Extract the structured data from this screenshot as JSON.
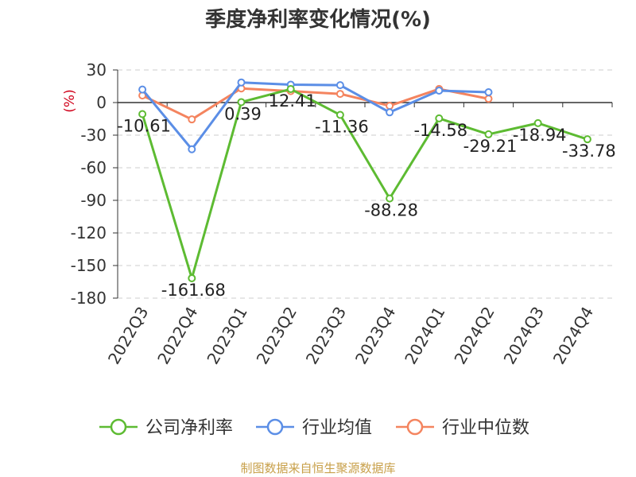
{
  "title": "季度净利率变化情况(%)",
  "source": "制图数据来自恒生聚源数据库",
  "chart_data": {
    "type": "line",
    "title": "季度净利率变化情况(%)",
    "ylabel": "(%)",
    "xlabel": "",
    "ylim": [
      -180,
      30
    ],
    "yticks": [
      30,
      0,
      -30,
      -60,
      -90,
      -120,
      -150,
      -180
    ],
    "grid": true,
    "legend_position": "bottom",
    "categories": [
      "2022Q3",
      "2022Q4",
      "2023Q1",
      "2023Q2",
      "2023Q3",
      "2023Q4",
      "2024Q1",
      "2024Q2",
      "2024Q3",
      "2024Q4"
    ],
    "series": [
      {
        "name": "公司净利率",
        "color": "#5dbb32",
        "values": [
          -10.61,
          -161.68,
          0.39,
          12.41,
          -11.36,
          -88.28,
          -14.58,
          -29.21,
          -18.94,
          -33.78
        ],
        "labels": [
          "-10.61",
          "-161.68",
          "0.39",
          "12.41",
          "-11.36",
          "-88.28",
          "-14.58",
          "-29.21",
          "-18.94",
          "-33.78"
        ]
      },
      {
        "name": "行业均值",
        "color": "#5b8ee6",
        "values": [
          12,
          -43,
          18.5,
          16.5,
          16,
          -9,
          11,
          9.5,
          null,
          null
        ]
      },
      {
        "name": "行业中位数",
        "color": "#f4845f",
        "values": [
          6.5,
          -15.5,
          13,
          10.5,
          8,
          -3,
          12.5,
          3.5,
          null,
          null
        ]
      }
    ]
  }
}
